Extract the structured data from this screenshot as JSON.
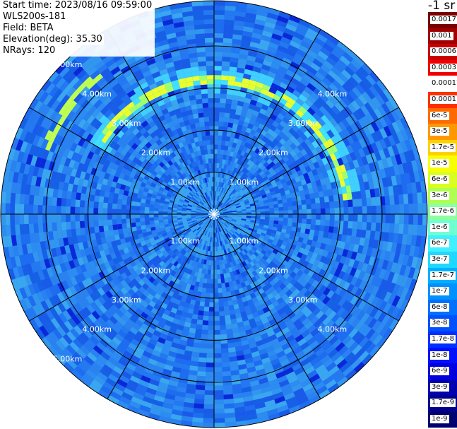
{
  "header": {
    "start_time": "Start time: 2023/08/16 09:59:00",
    "instrument": "WLS200s-181",
    "field": "Field: BETA",
    "elevation": "Elevation(deg): 35.30",
    "nrays": "NRays: 120"
  },
  "colorbar": {
    "units": "-1 sr",
    "labels": [
      "0.0017",
      "0.001",
      "0.0006",
      "0.0003",
      "0.00017",
      "0.0001",
      "6e-5",
      "3e-5",
      "1.7e-5",
      "1e-5",
      "6e-6",
      "3e-6",
      "1.7e-6",
      "1e-6",
      "6e-7",
      "3e-7",
      "1.7e-7",
      "1e-7",
      "6e-8",
      "3e-8",
      "1.7e-8",
      "1e-8",
      "6e-9",
      "3e-9",
      "1.7e-9",
      "1e-9"
    ],
    "colors": [
      "#7a0000",
      "#a00000",
      "#c80000",
      "#f00000",
      "#ffffff",
      "#ff3000",
      "#ff6a00",
      "#ff9800",
      "#ffd000",
      "#f8ff00",
      "#d8ff20",
      "#b0ff50",
      "#8cffa0",
      "#70ffd0",
      "#40f0ff",
      "#20d8ff",
      "#00b0ff",
      "#0090ff",
      "#0070ff",
      "#0050ff",
      "#0030ff",
      "#0010ff",
      "#0000e0",
      "#0000b0",
      "#000090",
      "#000070"
    ]
  },
  "chart_data": {
    "type": "heatmap",
    "projection": "polar-ppi",
    "nrays": 120,
    "elevation_deg": 35.3,
    "max_range_km": 5.0,
    "range_rings_km": [
      1,
      2,
      3,
      4
    ],
    "range_labels": [
      "1.00km",
      "2.00km",
      "3.00km",
      "4.00km",
      "5.00km"
    ],
    "spoke_step_deg": 30,
    "background_beta": "1e-7",
    "features": [
      {
        "name": "aerosol layer arc",
        "range_km": 3.2,
        "azimuth_deg_start": 300,
        "azimuth_deg_end": 85,
        "beta": "1.7e-5"
      },
      {
        "name": "inner weak layer",
        "range_km": 4.3,
        "azimuth_deg_start": 290,
        "azimuth_deg_end": 320,
        "beta": "6e-6"
      }
    ]
  }
}
